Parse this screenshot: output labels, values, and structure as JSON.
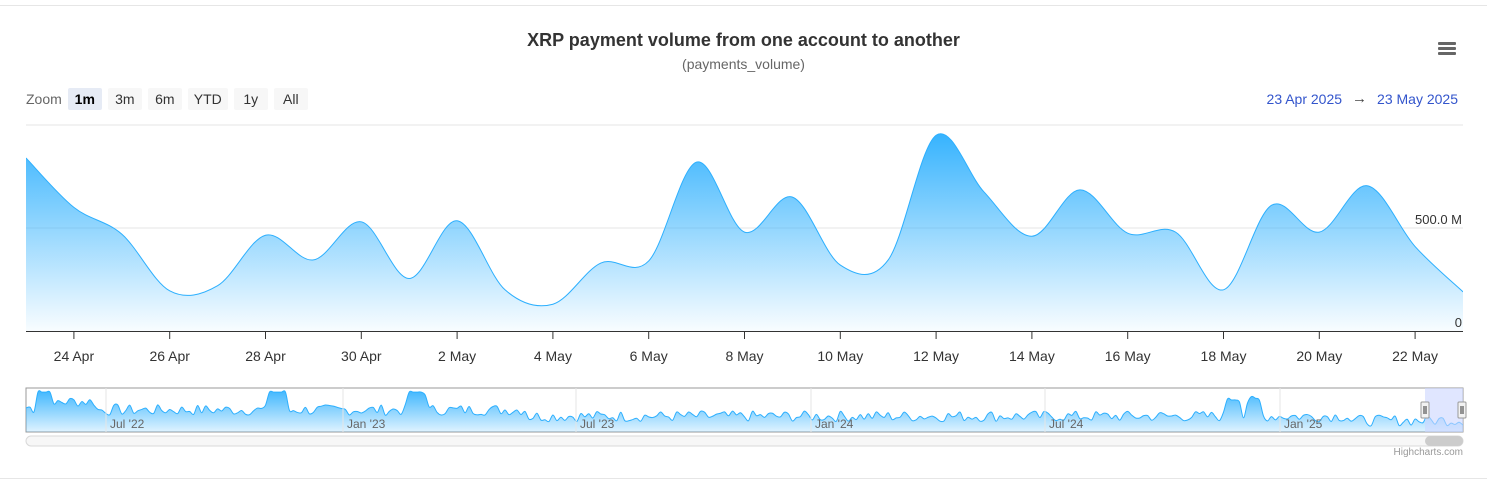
{
  "title": "XRP payment volume from one account to another",
  "subtitle": "(payments_volume)",
  "menu": {
    "icon": "hamburger-menu-icon"
  },
  "zoom": {
    "label": "Zoom",
    "buttons": [
      "1m",
      "3m",
      "6m",
      "YTD",
      "1y",
      "All"
    ],
    "selected": "1m"
  },
  "range": {
    "from": "23 Apr 2025",
    "arrow": "→",
    "to": "23 May 2025"
  },
  "credits": "Highcharts.com",
  "colors": {
    "series": "#2caffe",
    "range_text": "#3355cc",
    "navigator_mask": "#ccd6ff"
  },
  "chart_data": {
    "type": "area",
    "title": "XRP payment volume from one account to another",
    "subtitle": "(payments_volume)",
    "x_range": [
      "2025-04-23",
      "2025-05-23"
    ],
    "x_tick_labels": [
      "24 Apr",
      "26 Apr",
      "28 Apr",
      "30 Apr",
      "2 May",
      "4 May",
      "6 May",
      "8 May",
      "10 May",
      "12 May",
      "14 May",
      "16 May",
      "18 May",
      "20 May",
      "22 May"
    ],
    "y_tick_labels": [
      "0",
      "500.0 M"
    ],
    "y_ticks": [
      0,
      500000000
    ],
    "ylim": [
      0,
      1000000000
    ],
    "grid": true,
    "series": [
      {
        "x": [
          "2025-04-23",
          "2025-04-24",
          "2025-04-25",
          "2025-04-26",
          "2025-04-27",
          "2025-04-28",
          "2025-04-29",
          "2025-04-30",
          "2025-05-01",
          "2025-05-02",
          "2025-05-03",
          "2025-05-04",
          "2025-05-05",
          "2025-05-06",
          "2025-05-07",
          "2025-05-08",
          "2025-05-09",
          "2025-05-10",
          "2025-05-11",
          "2025-05-12",
          "2025-05-13",
          "2025-05-14",
          "2025-05-15",
          "2025-05-16",
          "2025-05-17",
          "2025-05-18",
          "2025-05-19",
          "2025-05-20",
          "2025-05-21",
          "2025-05-22",
          "2025-05-23"
        ],
        "values": [
          840000000,
          600000000,
          470000000,
          195000000,
          220000000,
          465000000,
          345000000,
          530000000,
          255000000,
          535000000,
          200000000,
          130000000,
          330000000,
          340000000,
          820000000,
          480000000,
          650000000,
          320000000,
          345000000,
          950000000,
          675000000,
          460000000,
          685000000,
          475000000,
          480000000,
          200000000,
          610000000,
          480000000,
          705000000,
          410000000,
          190000000
        ]
      }
    ],
    "navigator": {
      "tick_labels": [
        "Jul '22",
        "Jan '23",
        "Jul '23",
        "Jan '24",
        "Jul '24",
        "Jan '25"
      ]
    }
  }
}
